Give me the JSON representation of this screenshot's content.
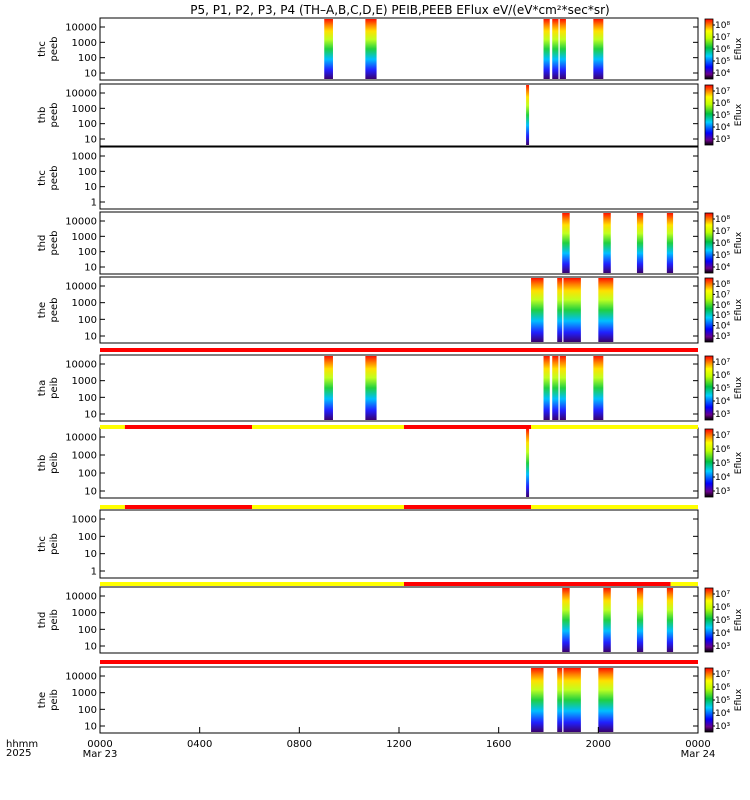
{
  "chart_data": {
    "type": "heatmap",
    "title": "P5, P1, P2, P3, P4 (TH-A,B,C,D,E) PEIB,PEEB EFlux eV/(eV*cm^2*sec*sr)",
    "title_text": "P5, P1, P2, P3, P4 (TH–A,B,C,D,E) PEIB,PEEB EFlux eV/(eV*cm²*sec*sr)",
    "xlabel": "hhmm",
    "xlabel_year": "2025",
    "x_range_hours": [
      0,
      24
    ],
    "x_ticks": [
      {
        "hour": 0,
        "label": "0000",
        "sub": "Mar 23"
      },
      {
        "hour": 4,
        "label": "0400",
        "sub": ""
      },
      {
        "hour": 8,
        "label": "0800",
        "sub": ""
      },
      {
        "hour": 12,
        "label": "1200",
        "sub": ""
      },
      {
        "hour": 16,
        "label": "1600",
        "sub": ""
      },
      {
        "hour": 20,
        "label": "2000",
        "sub": ""
      },
      {
        "hour": 24,
        "label": "0000",
        "sub": "Mar 24"
      }
    ],
    "colorbar_label": "Eflux",
    "panels": [
      {
        "probe": "thc",
        "instrument": "peeb",
        "y_ticks": [
          "10",
          "100",
          "1000",
          "10000"
        ],
        "cbar_exponents": [
          4,
          5,
          6,
          7,
          8
        ],
        "intervals": [
          [
            9.0,
            9.35
          ],
          [
            10.65,
            11.1
          ],
          [
            17.8,
            18.05
          ],
          [
            18.15,
            18.4
          ],
          [
            18.45,
            18.7
          ],
          [
            19.8,
            20.2
          ]
        ]
      },
      {
        "probe": "thb",
        "instrument": "peeb",
        "y_ticks": [
          "10",
          "100",
          "1000",
          "10000"
        ],
        "cbar_exponents": [
          3,
          4,
          5,
          6,
          7
        ],
        "intervals": [
          [
            17.1,
            17.22
          ]
        ]
      },
      {
        "probe": "thc",
        "instrument": "peeb",
        "y_ticks": [
          "1",
          "10",
          "100",
          "1000"
        ],
        "cbar_exponents": [],
        "intervals": []
      },
      {
        "probe": "thd",
        "instrument": "peeb",
        "y_ticks": [
          "10",
          "100",
          "1000",
          "10000"
        ],
        "cbar_exponents": [
          4,
          5,
          6,
          7,
          8
        ],
        "intervals": [
          [
            18.55,
            18.85
          ],
          [
            20.2,
            20.5
          ],
          [
            21.55,
            21.8
          ],
          [
            22.75,
            23.0
          ]
        ]
      },
      {
        "probe": "the",
        "instrument": "peeb",
        "y_ticks": [
          "10",
          "100",
          "1000",
          "10000"
        ],
        "cbar_exponents": [
          3,
          4,
          5,
          6,
          7,
          8
        ],
        "intervals": [
          [
            17.3,
            17.8
          ],
          [
            18.35,
            18.55
          ],
          [
            18.6,
            19.3
          ],
          [
            20.0,
            20.6
          ]
        ]
      },
      {
        "probe": "tha",
        "instrument": "peib",
        "y_ticks": [
          "10",
          "100",
          "1000",
          "10000"
        ],
        "cbar_exponents": [
          3,
          4,
          5,
          6,
          7
        ],
        "intervals": [
          [
            9.0,
            9.35
          ],
          [
            10.65,
            11.1
          ],
          [
            17.8,
            18.05
          ],
          [
            18.15,
            18.4
          ],
          [
            18.45,
            18.7
          ],
          [
            19.8,
            20.2
          ]
        ]
      },
      {
        "probe": "thb",
        "instrument": "peib",
        "y_ticks": [
          "10",
          "100",
          "1000",
          "10000"
        ],
        "cbar_exponents": [
          3,
          4,
          5,
          6,
          7
        ],
        "intervals": [
          [
            17.1,
            17.22
          ]
        ]
      },
      {
        "probe": "thc",
        "instrument": "peib",
        "y_ticks": [
          "1",
          "10",
          "100",
          "1000"
        ],
        "cbar_exponents": [],
        "intervals": []
      },
      {
        "probe": "thd",
        "instrument": "peib",
        "y_ticks": [
          "10",
          "100",
          "1000",
          "10000"
        ],
        "cbar_exponents": [
          3,
          4,
          5,
          6,
          7
        ],
        "intervals": [
          [
            18.55,
            18.85
          ],
          [
            20.2,
            20.5
          ],
          [
            21.55,
            21.8
          ],
          [
            22.75,
            23.0
          ]
        ]
      },
      {
        "probe": "the",
        "instrument": "peib",
        "y_ticks": [
          "10",
          "100",
          "1000",
          "10000"
        ],
        "cbar_exponents": [
          3,
          4,
          5,
          6,
          7
        ],
        "intervals": [
          [
            17.3,
            17.8
          ],
          [
            18.35,
            18.55
          ],
          [
            18.6,
            19.3
          ],
          [
            20.0,
            20.6
          ]
        ]
      }
    ],
    "mode_bars": [
      {
        "after_panel": 5,
        "segments": [
          [
            0,
            24,
            "red"
          ]
        ]
      },
      {
        "after_panel": 6,
        "segments": [
          [
            0,
            1.0,
            "yellow"
          ],
          [
            1.0,
            6.1,
            "red"
          ],
          [
            6.1,
            12.2,
            "yellow"
          ],
          [
            12.2,
            17.3,
            "red"
          ],
          [
            17.3,
            24,
            "yellow"
          ]
        ]
      },
      {
        "after_panel": 7,
        "segments": [
          [
            0,
            1.0,
            "yellow"
          ],
          [
            1.0,
            6.1,
            "red"
          ],
          [
            6.1,
            12.2,
            "yellow"
          ],
          [
            12.2,
            17.3,
            "red"
          ],
          [
            17.3,
            24,
            "yellow"
          ]
        ]
      },
      {
        "after_panel": 9,
        "segments": [
          [
            0,
            12.2,
            "yellow"
          ],
          [
            12.2,
            22.9,
            "red"
          ],
          [
            22.9,
            24,
            "yellow"
          ]
        ]
      },
      {
        "after_panel": 10,
        "segments": [
          [
            0,
            24,
            "red"
          ]
        ]
      }
    ],
    "colors": {
      "red": "#ff0000",
      "yellow": "#ffff00",
      "axis": "#000000"
    }
  }
}
